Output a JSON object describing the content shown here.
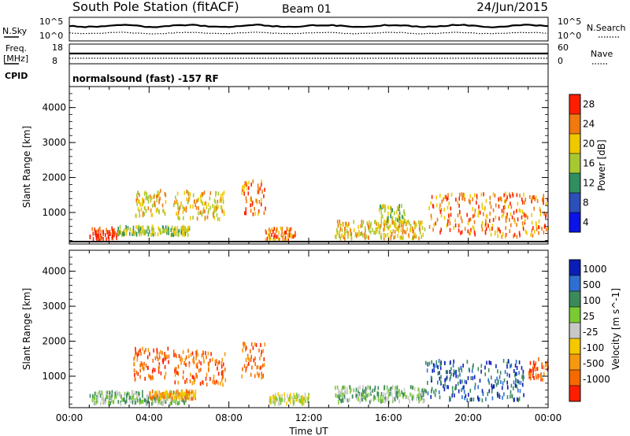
{
  "header": {
    "station": "South Pole Station (fitACF)",
    "beam": "Beam 01",
    "date": "24/Jun/2015"
  },
  "status_panels": {
    "nsky": {
      "label": "N.Sky",
      "ticks": [
        "10^5",
        "10^0"
      ]
    },
    "nsearch": {
      "label": "N.Search",
      "ticks": [
        "10^5",
        "10^0"
      ]
    },
    "freq": {
      "label_line1": "Freq.",
      "label_line2": "[MHz]",
      "ticks": [
        "18",
        "8"
      ]
    },
    "nave": {
      "label": "Nave",
      "ticks": [
        "60",
        "0"
      ]
    },
    "cpid": {
      "label": "CPID",
      "text": "normalsound (fast) -157 RF"
    }
  },
  "chart_data": [
    {
      "type": "heatmap",
      "name": "power",
      "xlabel": "",
      "ylabel": "Slant Range [km]",
      "x_ticks": [
        "00:00",
        "04:00",
        "08:00",
        "12:00",
        "16:00",
        "20:00",
        "00:00"
      ],
      "y_ticks": [
        "1000",
        "2000",
        "3000",
        "4000"
      ],
      "colorbar": {
        "label": "Power [dB]",
        "ticks": [
          "4",
          "8",
          "12",
          "16",
          "20",
          "24",
          "28"
        ],
        "colors": [
          "#0a14e6",
          "#2c4fb8",
          "#2f8f60",
          "#a8c832",
          "#f0c800",
          "#f07a10",
          "#ff1e00"
        ]
      },
      "regions": [
        {
          "t0": 1.0,
          "t1": 2.4,
          "r0": 200,
          "r1": 550,
          "level": 6
        },
        {
          "t0": 2.4,
          "t1": 6.0,
          "r0": 350,
          "r1": 600,
          "level": 3
        },
        {
          "t0": 3.3,
          "t1": 4.9,
          "r0": 900,
          "r1": 1650,
          "level": 4
        },
        {
          "t0": 5.2,
          "t1": 7.8,
          "r0": 800,
          "r1": 1600,
          "level": 4
        },
        {
          "t0": 8.6,
          "t1": 9.8,
          "r0": 950,
          "r1": 1900,
          "level": 5
        },
        {
          "t0": 9.8,
          "t1": 11.3,
          "r0": 200,
          "r1": 550,
          "level": 5
        },
        {
          "t0": 13.3,
          "t1": 17.8,
          "r0": 250,
          "r1": 750,
          "level": 4
        },
        {
          "t0": 15.5,
          "t1": 16.8,
          "r0": 700,
          "r1": 1200,
          "level": 3
        },
        {
          "t0": 18.0,
          "t1": 24.0,
          "r0": 300,
          "r1": 1550,
          "level": 5
        }
      ]
    },
    {
      "type": "heatmap",
      "name": "velocity",
      "xlabel": "Time UT",
      "ylabel": "Slant Range [km]",
      "x_ticks": [
        "00:00",
        "04:00",
        "08:00",
        "12:00",
        "16:00",
        "20:00",
        "00:00"
      ],
      "y_ticks": [
        "1000",
        "2000",
        "3000",
        "4000"
      ],
      "colorbar": {
        "label": "Velocity [m s^-1]",
        "ticks": [
          "1000",
          "500",
          "100",
          "25",
          "-25",
          "-100",
          "-500",
          "-1000"
        ],
        "colors": [
          "#0a1eb4",
          "#2f6fcf",
          "#3c8a5a",
          "#7acb32",
          "#c8c8c8",
          "#f5c800",
          "#f59a10",
          "#f56a00",
          "#ff1e00"
        ]
      },
      "regions": [
        {
          "t0": 1.0,
          "t1": 6.0,
          "r0": 200,
          "r1": 550,
          "level": 3
        },
        {
          "t0": 4.0,
          "t1": 6.3,
          "r0": 350,
          "r1": 580,
          "level": 6
        },
        {
          "t0": 3.2,
          "t1": 5.0,
          "r0": 900,
          "r1": 1800,
          "level": 7
        },
        {
          "t0": 5.2,
          "t1": 7.8,
          "r0": 750,
          "r1": 1750,
          "level": 7
        },
        {
          "t0": 8.6,
          "t1": 9.8,
          "r0": 950,
          "r1": 1950,
          "level": 7
        },
        {
          "t0": 10.0,
          "t1": 12.0,
          "r0": 200,
          "r1": 500,
          "level": 4
        },
        {
          "t0": 13.3,
          "t1": 17.8,
          "r0": 250,
          "r1": 700,
          "level": 3
        },
        {
          "t0": 17.8,
          "t1": 22.8,
          "r0": 300,
          "r1": 1450,
          "level": 1
        },
        {
          "t0": 23.0,
          "t1": 24.0,
          "r0": 900,
          "r1": 1550,
          "level": 7
        }
      ]
    }
  ]
}
